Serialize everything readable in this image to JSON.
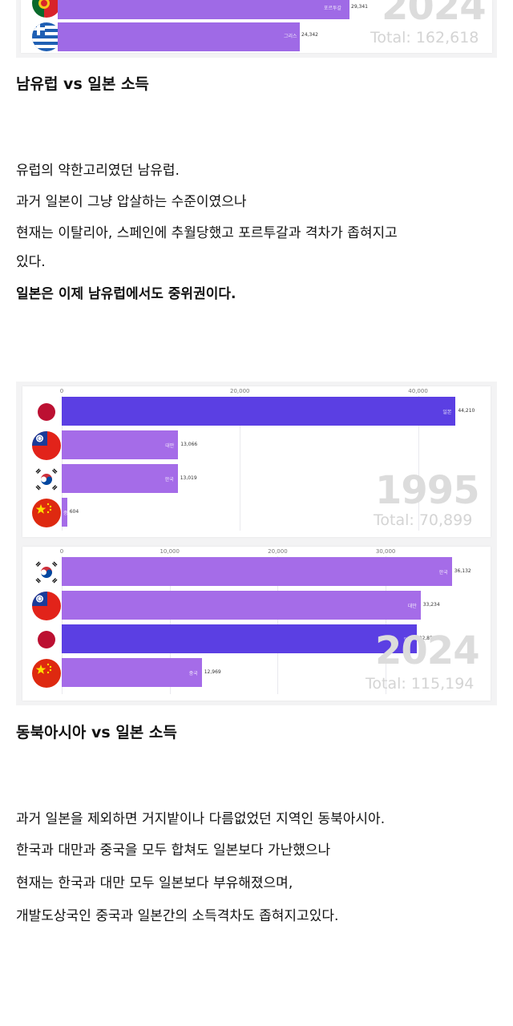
{
  "top_chart": {
    "bars": [
      {
        "label": "포르투갈",
        "value": "29,341",
        "color": "#9f6ae6",
        "flag": "portugal"
      },
      {
        "label": "그리스",
        "value": "24,342",
        "color": "#9f6ae6",
        "flag": "greece"
      }
    ],
    "year": "2024",
    "total": "Total: 162,618"
  },
  "section1": {
    "heading": "남유럽 vs 일본 소득",
    "lines": [
      "유럽의 약한고리였던 남유럽.",
      "과거 일본이 그냥 압살하는 수준이였으나",
      "현재는 이탈리아, 스페인에 추월당했고 포르투갈과 격차가 좁혀지고",
      "있다."
    ],
    "bold_line": "일본은 이제 남유럽에서도 중위권이다."
  },
  "chart_data": [
    {
      "type": "bar",
      "orientation": "horizontal",
      "year": "1995",
      "total": "Total: 70,899",
      "ticks": [
        "0",
        "20,000",
        "40,000"
      ],
      "xlim": [
        0,
        44000
      ],
      "categories": [
        "일본",
        "대만",
        "한국",
        "중국"
      ],
      "values": [
        44210,
        13066,
        13019,
        604
      ],
      "value_labels": [
        "44,210",
        "13,066",
        "13,019",
        "604"
      ],
      "colors": [
        "#5b3fe3",
        "#a56ce8",
        "#a56ce8",
        "#a56ce8"
      ],
      "flags": [
        "japan",
        "taiwan",
        "korea",
        "china"
      ]
    },
    {
      "type": "bar",
      "orientation": "horizontal",
      "year": "2024",
      "total": "Total: 115,194",
      "ticks": [
        "0",
        "10,000",
        "20,000",
        "30,000"
      ],
      "xlim": [
        0,
        36300
      ],
      "categories": [
        "한국",
        "대만",
        "일본",
        "중국"
      ],
      "values": [
        36132,
        33234,
        32859,
        12969
      ],
      "value_labels": [
        "36,132",
        "33,234",
        "32,859",
        "12,969"
      ],
      "colors": [
        "#a56ce8",
        "#a56ce8",
        "#5b3fe3",
        "#a56ce8"
      ],
      "flags": [
        "korea",
        "taiwan",
        "japan",
        "china"
      ]
    }
  ],
  "section2": {
    "heading": "동북아시아 vs 일본 소득",
    "lines": [
      "과거 일본을 제외하면 거지밭이나 다름없었던 지역인 동북아시아.",
      "한국과 대만과 중국을 모두 합쳐도 일본보다 가난했으나",
      "현재는 한국과 대만 모두 일본보다 부유해졌으며,",
      "개발도상국인 중국과 일본간의 소득격차도 좁혀지고있다."
    ]
  }
}
